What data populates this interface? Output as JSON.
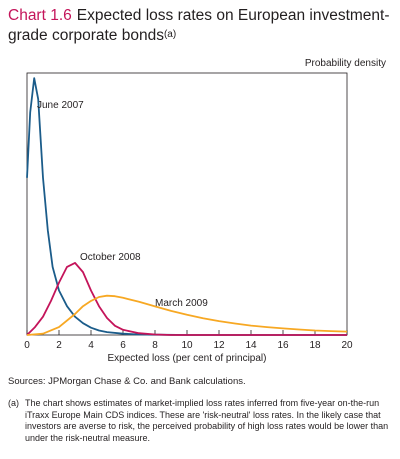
{
  "header": {
    "chart_number": "Chart 1.6",
    "title": "Expected loss rates on European investment-grade corporate bonds",
    "title_note": "(a)"
  },
  "sources": "Sources: JPMorgan Chase & Co. and Bank calculations.",
  "footnote": {
    "mark": "(a)",
    "text": "The chart shows estimates of market-implied loss rates inferred from five-year on-the-run iTraxx Europe Main CDS indices. These are 'risk-neutral' loss rates. In the likely case that investors are averse to risk, the perceived probability of high loss rates would be lower than under the risk-neutral measure."
  },
  "chart_data": {
    "type": "line",
    "title": "Expected loss rates on European investment-grade corporate bonds",
    "xlabel": "Expected loss (per cent of principal)",
    "ylabel": "Probability density",
    "xlim": [
      0,
      20
    ],
    "ylim": [
      0,
      1
    ],
    "xticks": [
      0,
      2,
      4,
      6,
      8,
      10,
      12,
      14,
      16,
      18,
      20
    ],
    "grid": false,
    "legend": "inline labels",
    "series": [
      {
        "name": "June 2007",
        "color": "#1b5c8a",
        "points": [
          [
            0,
            0.6
          ],
          [
            0.2,
            0.85
          ],
          [
            0.45,
            0.98
          ],
          [
            0.7,
            0.9
          ],
          [
            1.0,
            0.6
          ],
          [
            1.3,
            0.4
          ],
          [
            1.6,
            0.26
          ],
          [
            2.0,
            0.17
          ],
          [
            2.5,
            0.11
          ],
          [
            3.0,
            0.07
          ],
          [
            3.5,
            0.045
          ],
          [
            4.0,
            0.028
          ],
          [
            4.5,
            0.017
          ],
          [
            5.0,
            0.011
          ],
          [
            6.0,
            0.005
          ],
          [
            7.0,
            0.002
          ],
          [
            8.0,
            0.001
          ],
          [
            10.0,
            0.0
          ],
          [
            20.0,
            0.0
          ]
        ]
      },
      {
        "name": "October 2008",
        "color": "#c4145a",
        "points": [
          [
            0,
            0.0
          ],
          [
            0.5,
            0.03
          ],
          [
            1.0,
            0.07
          ],
          [
            1.5,
            0.13
          ],
          [
            2.0,
            0.2
          ],
          [
            2.5,
            0.26
          ],
          [
            3.0,
            0.275
          ],
          [
            3.5,
            0.24
          ],
          [
            4.0,
            0.17
          ],
          [
            4.5,
            0.11
          ],
          [
            5.0,
            0.065
          ],
          [
            5.5,
            0.035
          ],
          [
            6.0,
            0.02
          ],
          [
            7.0,
            0.007
          ],
          [
            8.0,
            0.002
          ],
          [
            9.0,
            0.0
          ],
          [
            20.0,
            0.0
          ]
        ]
      },
      {
        "name": "March 2009",
        "color": "#f7a823",
        "points": [
          [
            0,
            0.0
          ],
          [
            1.0,
            0.005
          ],
          [
            2.0,
            0.03
          ],
          [
            3.0,
            0.08
          ],
          [
            3.5,
            0.11
          ],
          [
            4.0,
            0.13
          ],
          [
            4.5,
            0.145
          ],
          [
            5.0,
            0.15
          ],
          [
            5.5,
            0.148
          ],
          [
            6.0,
            0.142
          ],
          [
            7.0,
            0.127
          ],
          [
            8.0,
            0.109
          ],
          [
            9.0,
            0.092
          ],
          [
            10.0,
            0.077
          ],
          [
            11.0,
            0.064
          ],
          [
            12.0,
            0.053
          ],
          [
            13.0,
            0.044
          ],
          [
            14.0,
            0.036
          ],
          [
            15.0,
            0.03
          ],
          [
            16.0,
            0.025
          ],
          [
            17.0,
            0.021
          ],
          [
            18.0,
            0.017
          ],
          [
            19.0,
            0.015
          ],
          [
            20.0,
            0.013
          ]
        ]
      }
    ]
  }
}
